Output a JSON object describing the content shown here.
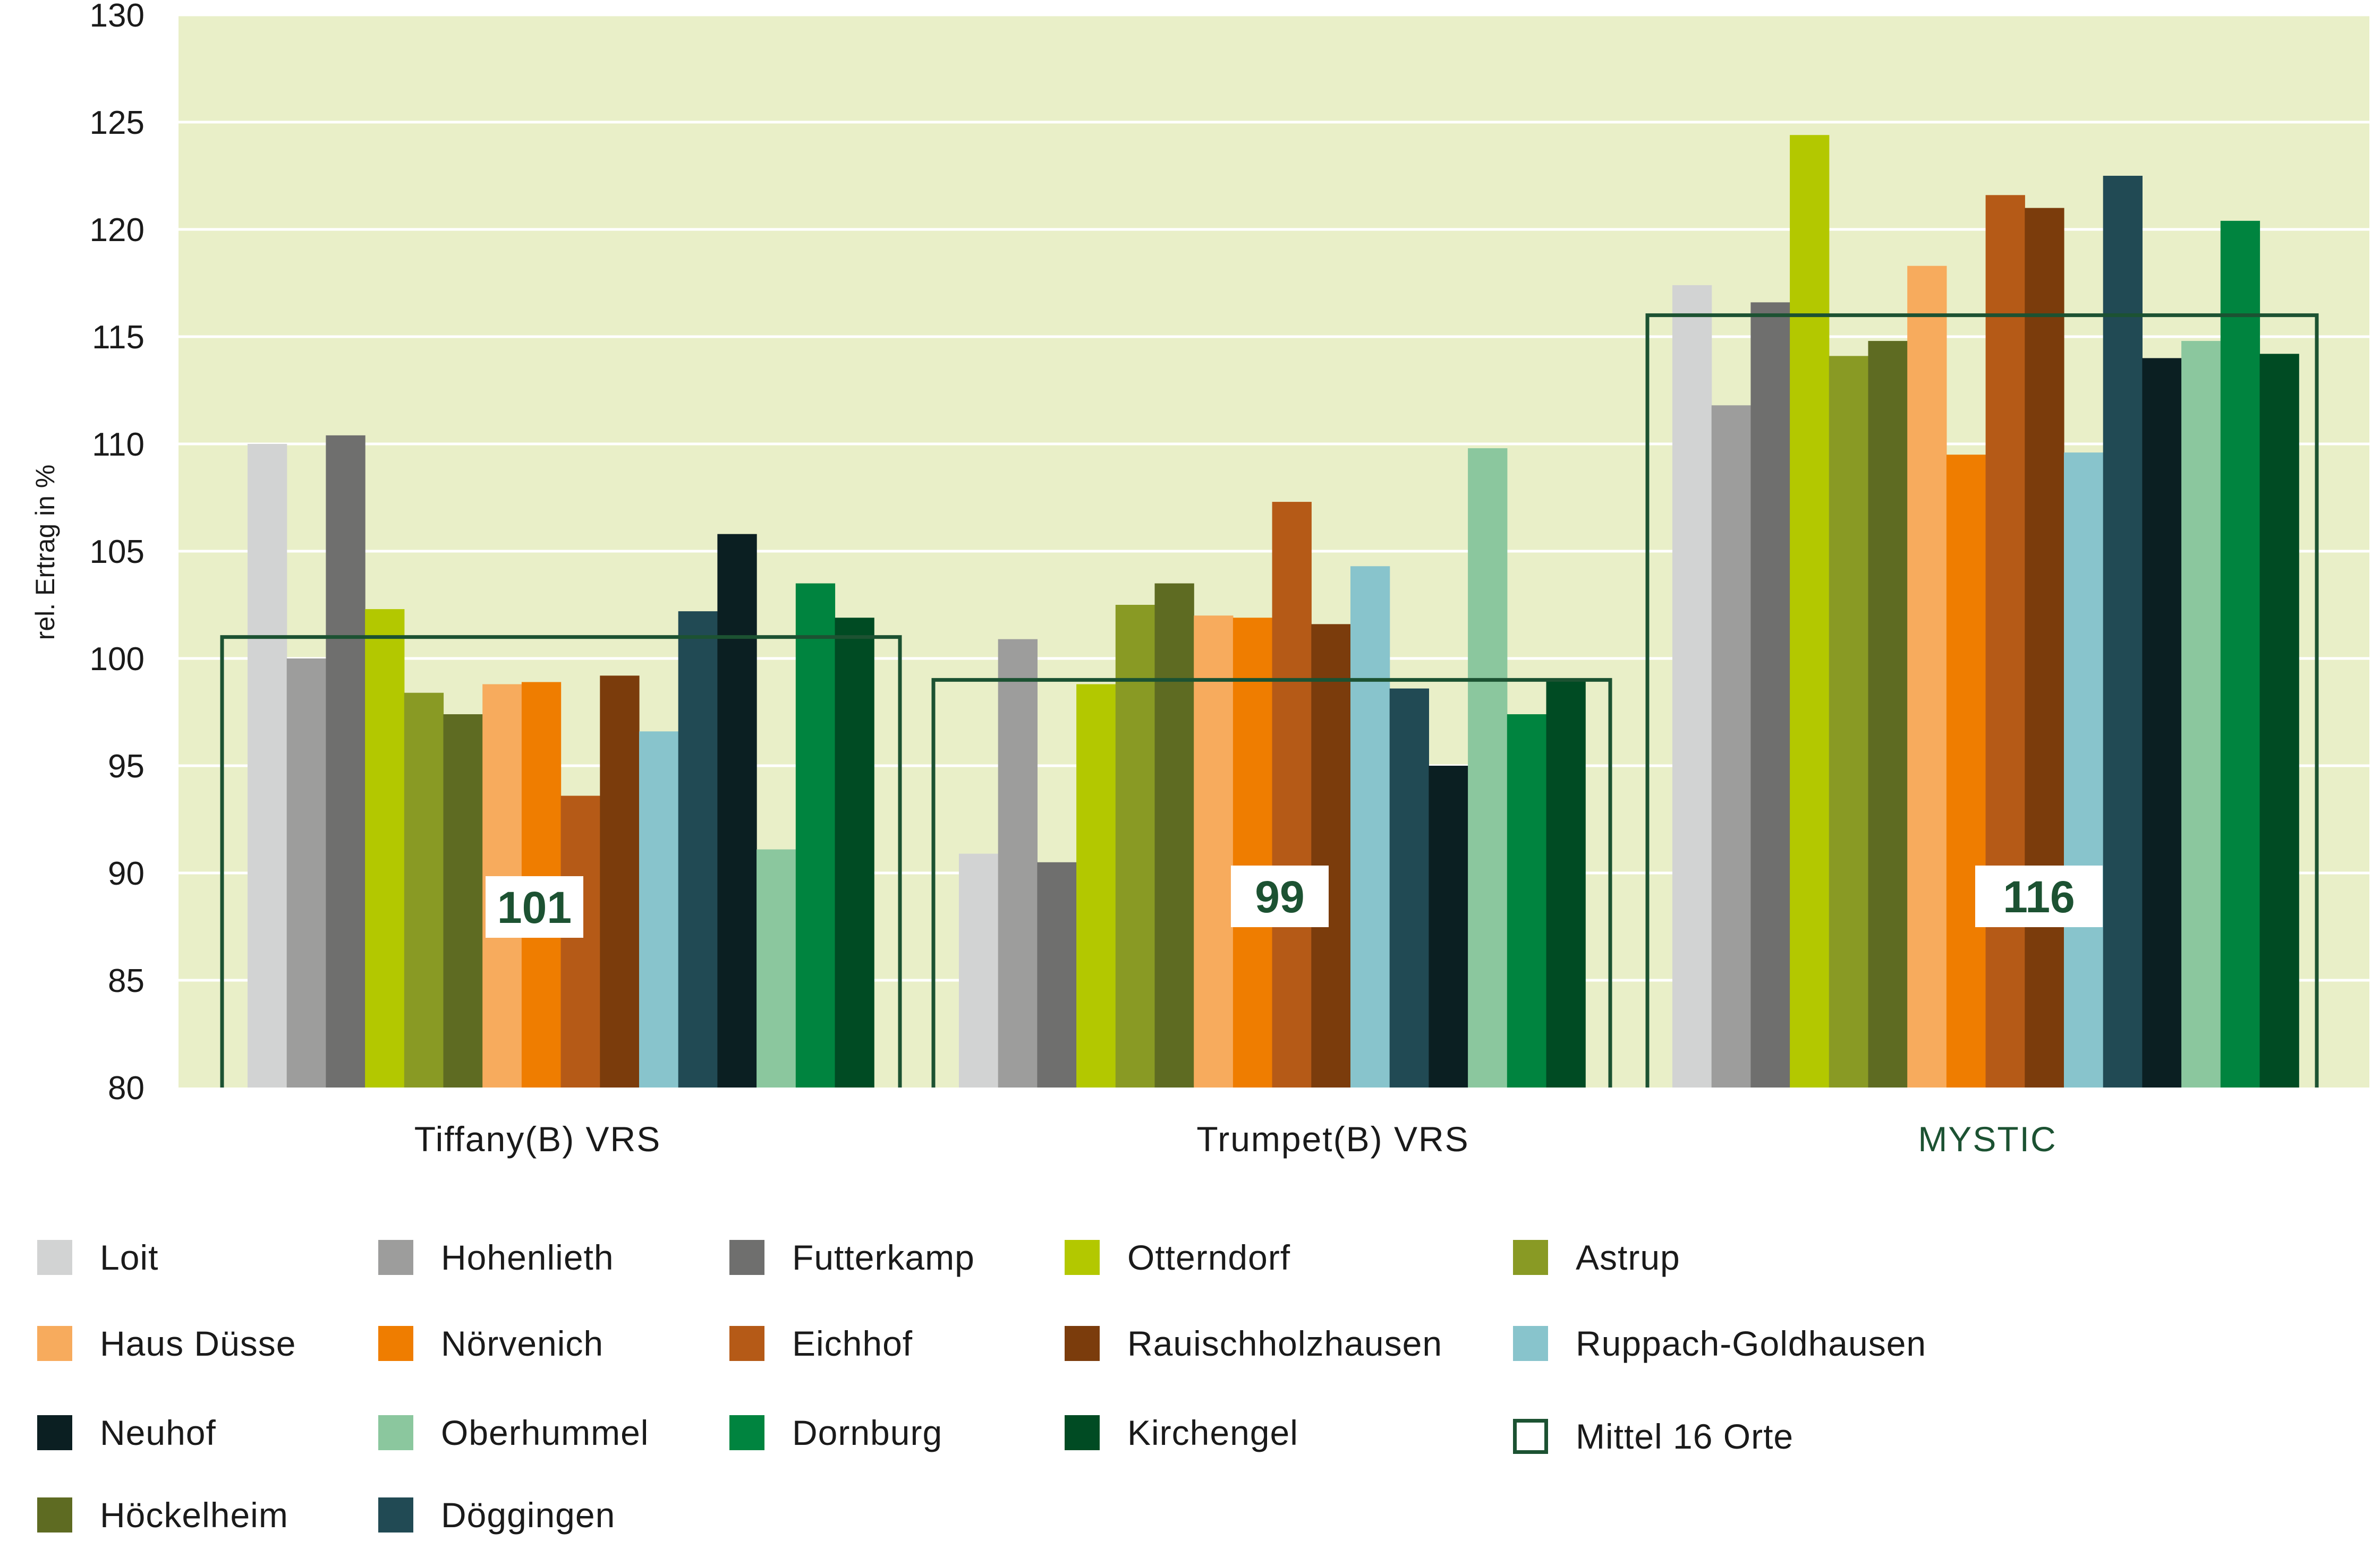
{
  "chart_data": {
    "type": "bar",
    "ylabel": "rel. Ertrag in %",
    "ylim": [
      80,
      130
    ],
    "yticks": [
      80,
      85,
      90,
      95,
      100,
      105,
      110,
      115,
      120,
      125,
      130
    ],
    "ytick_labels": [
      "80",
      "85",
      "90",
      "95",
      "100",
      "105",
      "110",
      "115",
      "120",
      "125",
      "130"
    ],
    "grid": true,
    "categories": [
      "Tiffany(B) VRS",
      "Trumpet(B) VRS",
      "MYSTIC"
    ],
    "category_colors": [
      "#1a1a1a",
      "#1a1a1a",
      "#1c5232"
    ],
    "background_color": "#e9efc8",
    "series": [
      {
        "name": "Loit",
        "color": "#d2d3d3",
        "values": [
          110.0,
          90.9,
          117.4
        ]
      },
      {
        "name": "Hohenlieth",
        "color": "#9d9d9c",
        "values": [
          100.0,
          100.9,
          111.8
        ]
      },
      {
        "name": "Futterkamp",
        "color": "#6f6f6e",
        "values": [
          110.4,
          90.5,
          116.6
        ]
      },
      {
        "name": "Otterndorf",
        "color": "#b3c800",
        "values": [
          102.3,
          98.8,
          124.4
        ]
      },
      {
        "name": "Astrup",
        "color": "#899a24",
        "values": [
          98.4,
          102.5,
          114.1
        ]
      },
      {
        "name": "Höckelheim",
        "color": "#5e6b22",
        "values": [
          97.4,
          103.5,
          114.8
        ]
      },
      {
        "name": "Haus Düsse",
        "color": "#f7ab5d",
        "values": [
          98.8,
          102.0,
          118.3
        ]
      },
      {
        "name": "Nörvenich",
        "color": "#ef7d00",
        "values": [
          98.9,
          101.9,
          109.5
        ]
      },
      {
        "name": "Eichhof",
        "color": "#b55a17",
        "values": [
          93.6,
          107.3,
          121.6
        ]
      },
      {
        "name": "Rauischholzhausen",
        "color": "#7b3c0c",
        "values": [
          99.2,
          101.6,
          121.0
        ]
      },
      {
        "name": "Ruppach-Goldhausen",
        "color": "#88c4cc",
        "values": [
          96.6,
          104.3,
          109.6
        ]
      },
      {
        "name": "Döggingen",
        "color": "#214a54",
        "values": [
          102.2,
          98.6,
          122.5
        ]
      },
      {
        "name": "Neuhof",
        "color": "#0b1f22",
        "values": [
          105.8,
          95.0,
          114.0
        ]
      },
      {
        "name": "Oberhummel",
        "color": "#8bc79e",
        "values": [
          91.1,
          109.8,
          114.8
        ]
      },
      {
        "name": "Dornburg",
        "color": "#00843f",
        "values": [
          103.5,
          97.4,
          120.4
        ]
      },
      {
        "name": "Kirchengel",
        "color": "#004b23",
        "values": [
          101.9,
          99.0,
          114.2
        ]
      }
    ],
    "mean": {
      "name": "Mittel 16 Orte",
      "color": "#1c5232",
      "values": [
        101,
        99,
        116
      ],
      "labels": [
        "101",
        "99",
        "116"
      ]
    }
  },
  "legend": {
    "items": [
      {
        "label": "Loit",
        "color": "#d2d3d3"
      },
      {
        "label": "Hohenlieth",
        "color": "#9d9d9c"
      },
      {
        "label": "Futterkamp",
        "color": "#6f6f6e"
      },
      {
        "label": "Otterndorf",
        "color": "#b3c800"
      },
      {
        "label": "Astrup",
        "color": "#899a24"
      },
      {
        "label": "Haus Düsse",
        "color": "#f7ab5d"
      },
      {
        "label": "Nörvenich",
        "color": "#ef7d00"
      },
      {
        "label": "Eichhof",
        "color": "#b55a17"
      },
      {
        "label": "Rauischholzhausen",
        "color": "#7b3c0c"
      },
      {
        "label": "Ruppach-Goldhausen",
        "color": "#88c4cc"
      },
      {
        "label": "Neuhof",
        "color": "#0b1f22"
      },
      {
        "label": "Oberhummel",
        "color": "#8bc79e"
      },
      {
        "label": "Dornburg",
        "color": "#00843f"
      },
      {
        "label": "Kirchengel",
        "color": "#004b23"
      },
      {
        "label": "Mittel 16 Orte",
        "color": "#1c5232"
      },
      {
        "label": "Höckelheim",
        "color": "#5e6b22"
      },
      {
        "label": "Döggingen",
        "color": "#214a54"
      }
    ]
  }
}
